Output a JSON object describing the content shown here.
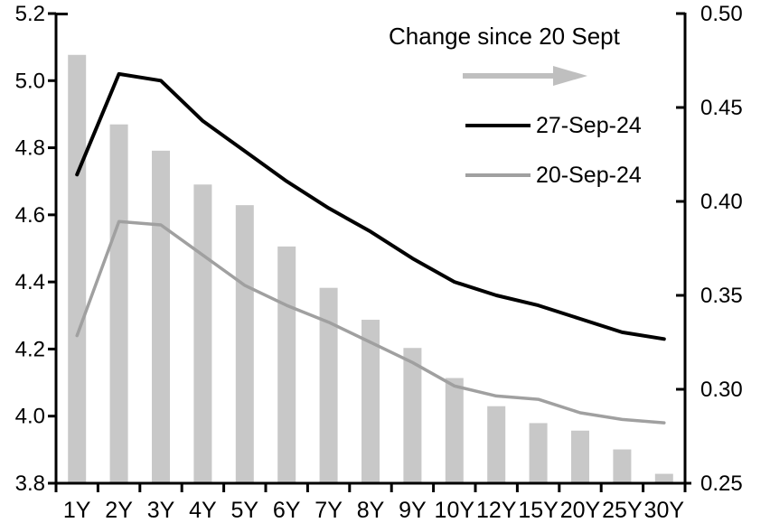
{
  "chart_data": {
    "type": "bar",
    "subtype": "combo-bar-and-lines",
    "categories": [
      "1Y",
      "2Y",
      "3Y",
      "4Y",
      "5Y",
      "6Y",
      "7Y",
      "8Y",
      "9Y",
      "10Y",
      "12Y",
      "15Y",
      "20Y",
      "25Y",
      "30Y"
    ],
    "bar_series": {
      "name": "Change since 20 Sept",
      "axis": "right",
      "values": [
        0.478,
        0.441,
        0.427,
        0.409,
        0.398,
        0.376,
        0.354,
        0.337,
        0.322,
        0.306,
        0.291,
        0.282,
        0.278,
        0.268,
        0.255
      ]
    },
    "series": [
      {
        "name": "27-Sep-24",
        "axis": "left",
        "color": "#000000",
        "width": 4,
        "values": [
          4.72,
          5.02,
          5.0,
          4.88,
          4.79,
          4.7,
          4.62,
          4.55,
          4.47,
          4.4,
          4.36,
          4.33,
          4.29,
          4.25,
          4.23
        ]
      },
      {
        "name": "20-Sep-24",
        "axis": "left",
        "color": "#a0a0a0",
        "width": 3.5,
        "values": [
          4.24,
          4.58,
          4.57,
          4.48,
          4.39,
          4.33,
          4.28,
          4.22,
          4.16,
          4.09,
          4.06,
          4.05,
          4.01,
          3.99,
          3.98
        ]
      }
    ],
    "left_axis": {
      "min": 3.8,
      "max": 5.2,
      "step": 0.2,
      "decimals": 1,
      "tick_labels": [
        "5.2",
        "5.0",
        "4.8",
        "4.6",
        "4.4",
        "4.2",
        "4.0",
        "3.8"
      ]
    },
    "right_axis": {
      "min": 0.25,
      "max": 0.5,
      "step": 0.05,
      "decimals": 2,
      "tick_labels": [
        "0.50",
        "0.45",
        "0.40",
        "0.35",
        "0.30",
        "0.25"
      ]
    },
    "legend": {
      "title": "Change since 20 Sept",
      "arrow": "right-arrow",
      "entries": [
        "27-Sep-24",
        "20-Sep-24"
      ]
    },
    "colors": {
      "bar": "#c8c8c8",
      "arrow": "#bfbfbf",
      "line_27_sep": "#000000",
      "line_20_sep": "#a0a0a0",
      "axis": "#000000",
      "text": "#000000",
      "background": "#ffffff"
    },
    "grid": false,
    "legend_position": "inside-top-right",
    "xlabel": "",
    "ylabel_left": "",
    "ylabel_right": ""
  }
}
